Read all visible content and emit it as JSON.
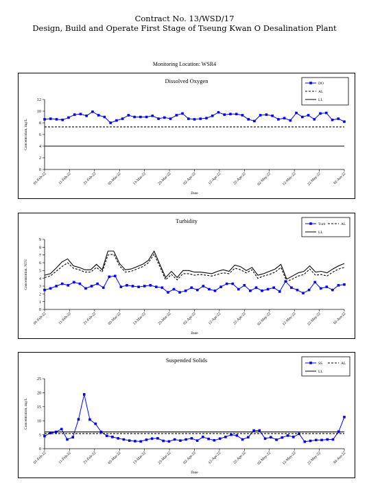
{
  "header": {
    "line1": "Contract No. 13/WSD/17",
    "line2": "Design, Build and Operate First Stage of Tseung Kwan O Desalination Plant"
  },
  "location": "Monitoring Location: WSR4",
  "colors": {
    "series": "#0000ff",
    "limits": "#000000"
  },
  "chart_data": [
    {
      "type": "line",
      "title": "Dissolved Oxygen",
      "ylabel": "Concentration, mg/L",
      "xlabel": "Date",
      "ylim": [
        0,
        12
      ],
      "yticks": [
        "0",
        "2",
        "4",
        "6",
        "8",
        "10",
        "12"
      ],
      "xticks": [
        "01-Feb-22",
        "11-Feb-22",
        "21-Feb-22",
        "03-Mar-22",
        "13-Mar-22",
        "23-Mar-22",
        "02-Apr-22",
        "12-Apr-22",
        "22-Apr-22",
        "02-May-22",
        "12-May-22",
        "22-May-22",
        "01-Jun-22"
      ],
      "legend": [
        "DO",
        "AL",
        "LL"
      ],
      "legend_position": "top-right",
      "series": [
        {
          "name": "DO",
          "style": "marker-line",
          "values": [
            8.6,
            8.7,
            8.6,
            8.5,
            8.9,
            9.4,
            9.5,
            9.2,
            9.9,
            9.3,
            9.0,
            8.0,
            8.4,
            8.7,
            9.3,
            9.0,
            9.0,
            9.0,
            9.2,
            8.7,
            8.9,
            8.7,
            9.3,
            9.6,
            8.7,
            8.6,
            8.7,
            8.8,
            9.2,
            9.8,
            9.4,
            9.5,
            9.5,
            9.3,
            8.6,
            8.3,
            9.3,
            9.4,
            9.2,
            8.6,
            8.8,
            8.4,
            9.7,
            9.0,
            9.3,
            8.6,
            9.6,
            9.7,
            8.5,
            8.7,
            8.2
          ]
        },
        {
          "name": "AL",
          "style": "dashed",
          "values": [
            7.3
          ]
        },
        {
          "name": "LL",
          "style": "solid",
          "values": [
            4.0
          ]
        }
      ]
    },
    {
      "type": "line",
      "title": "Turbidity",
      "ylabel": "Concentration, NTU",
      "xlabel": "Date",
      "ylim": [
        0,
        9
      ],
      "yticks": [
        "0",
        "1",
        "2",
        "3",
        "4",
        "5",
        "6",
        "7",
        "8",
        "9"
      ],
      "xticks": [
        "01-Feb-22",
        "11-Feb-22",
        "21-Feb-22",
        "03-Mar-22",
        "13-Mar-22",
        "23-Mar-22",
        "02-Apr-22",
        "12-Apr-22",
        "22-Apr-22",
        "02-May-22",
        "12-May-22",
        "22-May-22",
        "01-Jun-22"
      ],
      "legend": [
        "Turb",
        "AL",
        "LL"
      ],
      "legend_position": "top-right",
      "series": [
        {
          "name": "Turb",
          "style": "marker-line",
          "values": [
            2.5,
            2.7,
            3.0,
            3.3,
            3.1,
            3.5,
            3.3,
            2.7,
            3.0,
            3.3,
            2.8,
            4.2,
            4.3,
            2.9,
            3.1,
            3.0,
            2.9,
            3.0,
            3.1,
            2.9,
            2.8,
            2.2,
            2.6,
            2.2,
            2.4,
            2.8,
            2.5,
            3.0,
            2.6,
            2.4,
            2.9,
            3.3,
            3.3,
            2.6,
            3.1,
            2.4,
            2.8,
            2.4,
            2.6,
            2.8,
            2.3,
            3.6,
            2.8,
            2.5,
            2.1,
            2.5,
            3.5,
            2.7,
            2.9,
            2.5,
            3.1,
            3.2
          ]
        },
        {
          "name": "AL",
          "style": "dashed",
          "values": [
            4.1,
            4.3,
            4.9,
            5.5,
            6.0,
            5.3,
            5.1,
            4.8,
            4.8,
            5.4,
            4.8,
            7.0,
            7.1,
            5.6,
            4.8,
            4.9,
            5.2,
            5.5,
            6.0,
            7.1,
            5.5,
            3.8,
            4.5,
            3.8,
            4.6,
            4.6,
            4.4,
            4.5,
            4.4,
            4.3,
            4.5,
            4.7,
            4.6,
            5.3,
            5.1,
            4.7,
            5.1,
            4.0,
            4.3,
            4.5,
            4.8,
            5.4,
            3.6,
            3.9,
            4.3,
            4.5,
            5.2,
            4.4,
            4.5,
            4.3,
            4.8,
            5.2,
            5.4
          ]
        },
        {
          "name": "LL",
          "style": "solid",
          "values": [
            4.4,
            4.6,
            5.3,
            6.1,
            6.5,
            5.6,
            5.4,
            5.1,
            5.1,
            5.8,
            5.1,
            7.5,
            7.5,
            5.9,
            5.1,
            5.2,
            5.5,
            5.8,
            6.3,
            7.5,
            5.8,
            4.1,
            4.9,
            4.1,
            5.0,
            5.0,
            4.8,
            4.8,
            4.7,
            4.6,
            4.9,
            5.1,
            4.9,
            5.7,
            5.5,
            5.0,
            5.4,
            4.4,
            4.6,
            4.9,
            5.2,
            5.8,
            3.9,
            4.3,
            4.7,
            4.9,
            5.6,
            4.8,
            4.9,
            4.7,
            5.2,
            5.6,
            5.9
          ]
        }
      ]
    },
    {
      "type": "line",
      "title": "Suspended Solids",
      "ylabel": "Concentration, mg/L",
      "xlabel": "Date",
      "ylim": [
        0,
        25
      ],
      "yticks": [
        "0",
        "5",
        "10",
        "15",
        "20",
        "25"
      ],
      "xticks": [
        "01-Feb-22",
        "11-Feb-22",
        "21-Feb-22",
        "03-Mar-22",
        "13-Mar-22",
        "23-Mar-22",
        "02-Apr-22",
        "12-Apr-22",
        "22-Apr-22",
        "02-May-22",
        "12-May-22",
        "22-May-22",
        "01-Jun-22"
      ],
      "legend": [
        "SS",
        "AL",
        "LL"
      ],
      "legend_position": "top-right",
      "series": [
        {
          "name": "SS",
          "style": "marker-line",
          "values": [
            4.5,
            5.6,
            6.0,
            7.0,
            3.3,
            4.1,
            10.5,
            19.4,
            10.4,
            8.9,
            6.0,
            4.6,
            4.2,
            3.7,
            3.3,
            2.9,
            2.7,
            2.6,
            3.2,
            3.6,
            3.7,
            2.8,
            2.6,
            3.3,
            2.9,
            3.3,
            3.7,
            2.9,
            4.2,
            3.5,
            3.0,
            3.6,
            4.2,
            5.0,
            4.7,
            3.3,
            4.1,
            6.5,
            6.5,
            3.6,
            4.1,
            3.2,
            4.0,
            4.7,
            4.2,
            5.3,
            2.5,
            2.8,
            3.1,
            3.1,
            3.3,
            3.3,
            6.1,
            11.3
          ]
        },
        {
          "name": "AL",
          "style": "dashed",
          "values": [
            5.4
          ]
        },
        {
          "name": "LL",
          "style": "solid",
          "values": [
            6.0
          ]
        }
      ]
    }
  ]
}
